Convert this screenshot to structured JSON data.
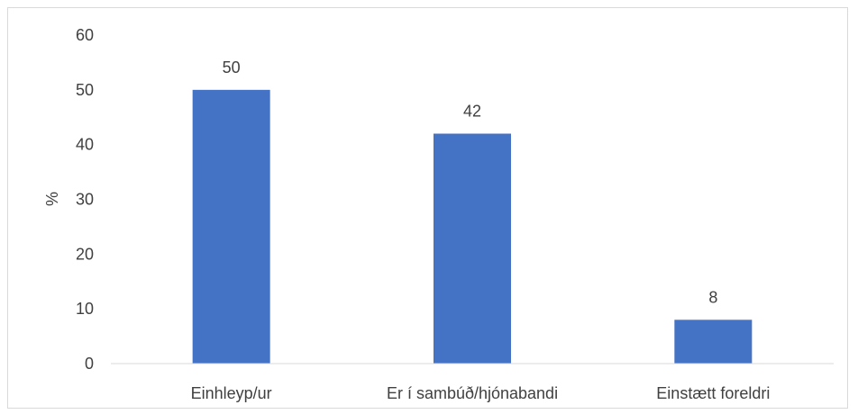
{
  "chart_data": {
    "type": "bar",
    "title": "",
    "xlabel": "",
    "ylabel": "%",
    "categories": [
      "Einhleyp/ur",
      "Er í sambúð/hjónabandi",
      "Einstætt foreldri"
    ],
    "values": [
      50,
      42,
      8
    ],
    "data_labels": [
      "50",
      "42",
      "8"
    ],
    "ylim": [
      0,
      60
    ],
    "yticks": [
      0,
      10,
      20,
      30,
      40,
      50,
      60
    ],
    "grid": false,
    "legend": "none",
    "bar_color": "#4472c4"
  }
}
